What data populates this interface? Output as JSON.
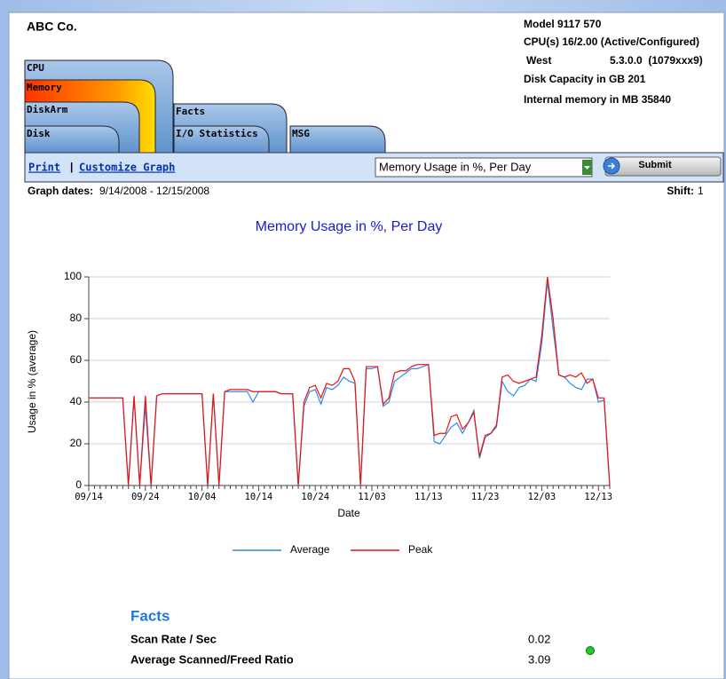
{
  "header": {
    "company": "ABC Co.",
    "model": "Model 9117 570",
    "cpus": "CPU(s) 16/2.00 (Active/Configured)",
    "region": "West",
    "version": "5.3.0.0  (1079xxx9)",
    "disk": "Disk Capacity in GB 201",
    "memory": "Internal memory in MB 35840"
  },
  "tabs": [
    "CPU",
    "Memory",
    "DiskArm",
    "Disk",
    "Facts",
    "I/O Statistics",
    "MSG"
  ],
  "active_tab": 1,
  "toolbar": {
    "links": [
      "Print",
      "Customize Graph"
    ],
    "separator": "|",
    "select": "Memory Usage in %, Per Day",
    "button": "Submit"
  },
  "graph_info": {
    "dates_label": "Graph dates:",
    "dates": "9/14/2008 - 12/15/2008",
    "shift_label": "Shift:",
    "shift": "1"
  },
  "chart_data": {
    "type": "line",
    "title": "Memory Usage in %, Per Day",
    "x_label": "Date",
    "y_label": "Usage in % (average)",
    "categories": [
      "09/14",
      null,
      null,
      null,
      null,
      null,
      null,
      null,
      null,
      null,
      "09/24",
      null,
      null,
      null,
      null,
      null,
      null,
      null,
      null,
      null,
      "10/04",
      null,
      null,
      null,
      null,
      null,
      null,
      null,
      null,
      null,
      "10/14",
      null,
      null,
      null,
      null,
      null,
      null,
      null,
      null,
      null,
      "10/24",
      null,
      null,
      null,
      null,
      null,
      null,
      null,
      null,
      null,
      "11/03",
      null,
      null,
      null,
      null,
      null,
      null,
      null,
      null,
      null,
      "11/13",
      null,
      null,
      null,
      null,
      null,
      null,
      null,
      null,
      null,
      "11/23",
      null,
      null,
      null,
      null,
      null,
      null,
      null,
      null,
      null,
      "12/03",
      null,
      null,
      null,
      null,
      null,
      null,
      null,
      null,
      null,
      "12/13",
      null,
      null
    ],
    "series": [
      {
        "name": "Average",
        "color": "#2b8ce6",
        "values": [
          42,
          42,
          42,
          42,
          42,
          42,
          42,
          0,
          42,
          0,
          38,
          0,
          43,
          44,
          44,
          44,
          44,
          44,
          44,
          44,
          44,
          0,
          44,
          0,
          45,
          45,
          45,
          45,
          45,
          40,
          45,
          45,
          45,
          45,
          44,
          44,
          44,
          0,
          38,
          45,
          46,
          39,
          47,
          46,
          48,
          52,
          50,
          49,
          0,
          56,
          56,
          57,
          38,
          40,
          50,
          52,
          54,
          56,
          56,
          57,
          58,
          21,
          20,
          24,
          28,
          30,
          25,
          30,
          36,
          13,
          23,
          25,
          28,
          50,
          45,
          43,
          47,
          48,
          51,
          50,
          68,
          98,
          75,
          53,
          52,
          49,
          47,
          46,
          51,
          51,
          40,
          41,
          0
        ]
      },
      {
        "name": "Peak",
        "color": "#ee1111",
        "values": [
          42,
          42,
          42,
          42,
          42,
          42,
          42,
          0,
          43,
          0,
          43,
          0,
          43,
          44,
          44,
          44,
          44,
          44,
          44,
          44,
          44,
          0,
          44,
          0,
          45,
          46,
          46,
          46,
          46,
          45,
          45,
          45,
          45,
          45,
          44,
          44,
          44,
          0,
          40,
          47,
          48,
          42,
          49,
          48,
          50,
          56,
          56,
          50,
          0,
          57,
          57,
          57,
          39,
          42,
          54,
          55,
          55,
          57,
          58,
          58,
          58,
          24,
          25,
          25,
          33,
          34,
          27,
          30,
          35,
          14,
          24,
          25,
          29,
          52,
          53,
          50,
          49,
          50,
          51,
          52,
          72,
          100,
          80,
          53,
          52,
          53,
          52,
          54,
          49,
          51,
          42,
          42,
          0
        ]
      }
    ],
    "ylim": [
      0,
      100
    ],
    "yticks": [
      0,
      20,
      40,
      60,
      80,
      100
    ],
    "grid": true,
    "legend": "bottom"
  },
  "facts": {
    "title": "Facts",
    "rows": [
      [
        "Scan Rate / Sec",
        "0.02"
      ],
      [
        "Average Scanned/Freed Ratio",
        "3.09"
      ]
    ]
  }
}
